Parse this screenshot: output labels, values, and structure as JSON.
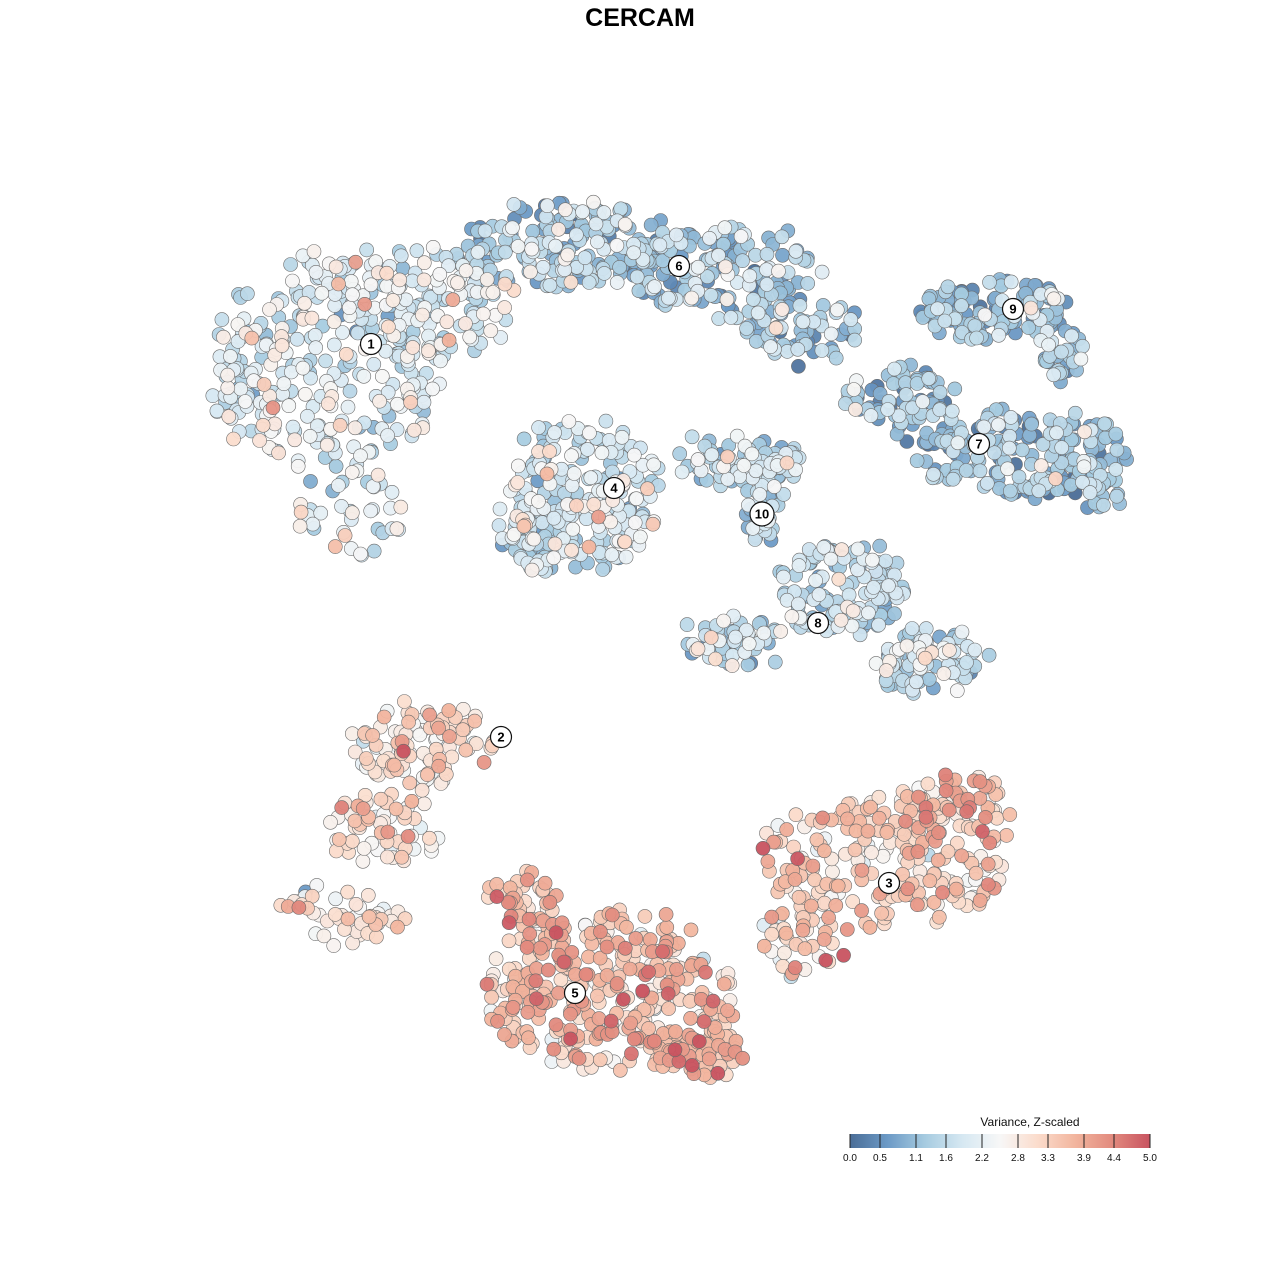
{
  "chart_data": {
    "type": "scatter",
    "title": "CERCAM",
    "xlabel": "",
    "ylabel": "",
    "grid": false,
    "axes_visible": false,
    "legend": {
      "title": "Variance, Z-scaled",
      "placement": "bottom-right",
      "ticks": [
        "0.0",
        "0.5",
        "1.1",
        "1.6",
        "2.2",
        "2.8",
        "3.3",
        "3.9",
        "4.4",
        "5.0"
      ],
      "range": [
        0,
        5
      ],
      "colors": [
        "#4a6d97",
        "#6c9ac6",
        "#a6cbe0",
        "#d6e8f2",
        "#f7f7f7",
        "#fbdccc",
        "#f2b59e",
        "#e28a7e",
        "#c85360"
      ]
    },
    "clusters": [
      {
        "label": "1",
        "value": 2.0
      },
      {
        "label": "2",
        "value": 2.9
      },
      {
        "label": "3",
        "value": 3.3
      },
      {
        "label": "4",
        "value": 1.8
      },
      {
        "label": "5",
        "value": 3.5
      },
      {
        "label": "6",
        "value": 1.2
      },
      {
        "label": "7",
        "value": 1.1
      },
      {
        "label": "8",
        "value": 1.5
      },
      {
        "label": "9",
        "value": 1.0
      },
      {
        "label": "10",
        "value": 1.6
      }
    ]
  }
}
